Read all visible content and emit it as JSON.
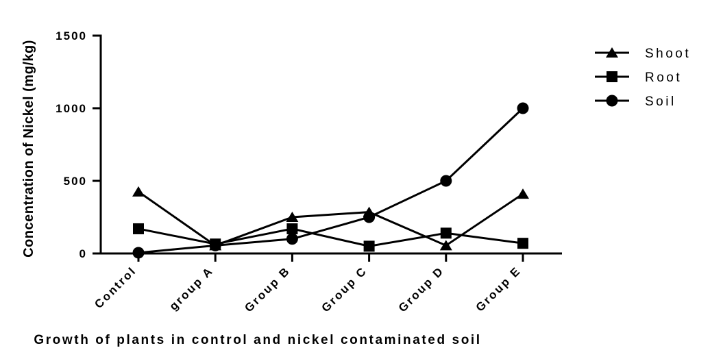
{
  "chart_data": {
    "type": "line",
    "title": "",
    "xlabel": "Growth of plants in control and nickel contaminated soil",
    "ylabel": "Concentration of Nickel (mg/kg)",
    "categories": [
      "Control",
      "group A",
      "Group B",
      "Group C",
      "Group D",
      "Group E"
    ],
    "ylim": [
      0,
      1500
    ],
    "yticks": [
      0,
      500,
      1000,
      1500
    ],
    "grid": false,
    "legend_position": "top-right",
    "series": [
      {
        "name": "Shoot",
        "marker": "triangle",
        "values": [
          425,
          55,
          250,
          285,
          55,
          410
        ]
      },
      {
        "name": "Root",
        "marker": "square",
        "values": [
          170,
          65,
          170,
          50,
          140,
          70
        ]
      },
      {
        "name": "Soil",
        "marker": "circle",
        "values": [
          5,
          55,
          100,
          250,
          500,
          1000
        ]
      }
    ]
  }
}
